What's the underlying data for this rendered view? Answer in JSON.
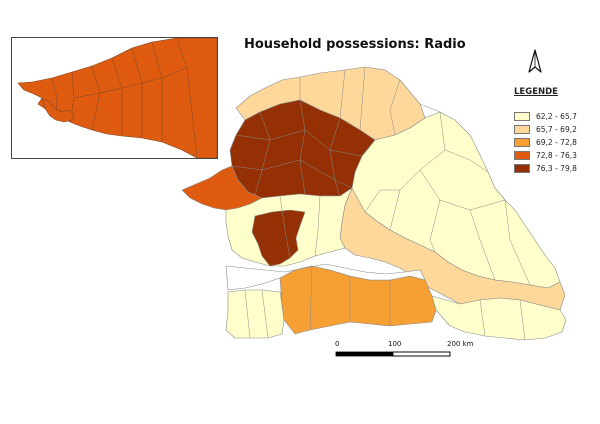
{
  "title": "Household possessions: Radio",
  "legend": {
    "title": "LEGENDE",
    "items": [
      {
        "label": "62,2 - 65,7",
        "color": "#FFFFCC"
      },
      {
        "label": "65,7 - 69,2",
        "color": "#FDD89A"
      },
      {
        "label": "69,2 - 72,8",
        "color": "#F6A033"
      },
      {
        "label": "72,8 - 76,3",
        "color": "#DF5B10"
      },
      {
        "label": "76,3 - 79,8",
        "color": "#943003"
      }
    ]
  },
  "scale": {
    "labels": [
      "0",
      "100",
      "200 km"
    ]
  },
  "north_arrow": {
    "icon": "north-arrow-icon"
  },
  "colors": {
    "boundary": "#8a8a8a",
    "river_gap": "#ffffff"
  }
}
